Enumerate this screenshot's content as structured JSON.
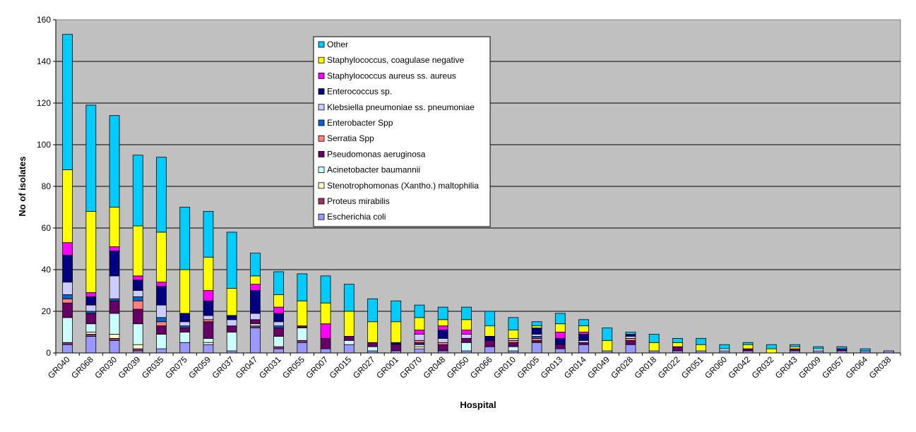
{
  "chart_data": {
    "type": "bar",
    "stacked": true,
    "xlabel": "Hospital",
    "ylabel": "No of isolates",
    "ylim": [
      0,
      160
    ],
    "ytick_step": 20,
    "grid": true,
    "legend_position": "top-center",
    "plot_background": "#c0c0c0",
    "categories": [
      "GR040",
      "GR068",
      "GR030",
      "GR039",
      "GR035",
      "GR075",
      "GR059",
      "GR037",
      "GR047",
      "GR031",
      "GR055",
      "GR007",
      "GR015",
      "GR027",
      "GR001",
      "GR070",
      "GR048",
      "GR050",
      "GR066",
      "GR010",
      "GR005",
      "GR013",
      "GR014",
      "GR049",
      "GR028",
      "GR018",
      "GR022",
      "GR051",
      "GR060",
      "GR042",
      "GR032",
      "GR043",
      "GR009",
      "GR057",
      "GR064",
      "GR038"
    ],
    "series": [
      {
        "name": "Escherichia coli",
        "color": "#9999ff",
        "values": [
          4,
          8,
          6,
          1,
          2,
          5,
          4,
          1,
          12,
          2,
          5,
          2,
          4,
          1,
          1,
          2,
          1,
          1,
          3,
          1,
          5,
          2,
          4,
          1,
          4,
          1,
          1,
          1,
          1,
          1,
          0,
          1,
          1,
          1,
          1,
          1
        ]
      },
      {
        "name": "Proteus mirabilis",
        "color": "#993366",
        "values": [
          1,
          1,
          1,
          1,
          0,
          0,
          0,
          0,
          1,
          1,
          1,
          0,
          0,
          0,
          0,
          0,
          0,
          0,
          0,
          0,
          0,
          0,
          0,
          0,
          0,
          0,
          0,
          0,
          0,
          0,
          0,
          0,
          0,
          0,
          0,
          0
        ]
      },
      {
        "name": "Stenotrophomonas (Xantho.) maltophilia",
        "color": "#ffffcc",
        "values": [
          0,
          1,
          2,
          2,
          0,
          0,
          1,
          0,
          0,
          0,
          0,
          0,
          0,
          0,
          0,
          1,
          0,
          0,
          0,
          0,
          0,
          0,
          0,
          0,
          0,
          0,
          0,
          0,
          0,
          0,
          0,
          0,
          0,
          0,
          0,
          0
        ]
      },
      {
        "name": "Acinetobacter baumannii",
        "color": "#ccffff",
        "values": [
          12,
          4,
          10,
          10,
          7,
          5,
          2,
          9,
          1,
          5,
          6,
          0,
          2,
          2,
          0,
          1,
          0,
          4,
          0,
          2,
          0,
          0,
          0,
          0,
          0,
          0,
          0,
          0,
          1,
          0,
          0,
          0,
          1,
          0,
          0,
          0
        ]
      },
      {
        "name": "Pseudomonas aeruginosa",
        "color": "#660066",
        "values": [
          7,
          5,
          6,
          7,
          4,
          2,
          8,
          3,
          2,
          4,
          1,
          5,
          2,
          2,
          3,
          1,
          3,
          2,
          3,
          2,
          1,
          2,
          1,
          0,
          2,
          0,
          2,
          0,
          0,
          1,
          0,
          1,
          0,
          1,
          0,
          0
        ]
      },
      {
        "name": "Serratia Spp",
        "color": "#ff8080",
        "values": [
          2,
          0,
          0,
          4,
          2,
          0,
          1,
          0,
          0,
          0,
          0,
          0,
          0,
          0,
          0,
          1,
          1,
          0,
          0,
          1,
          1,
          0,
          0,
          0,
          1,
          0,
          0,
          0,
          0,
          0,
          0,
          0,
          0,
          0,
          0,
          0
        ]
      },
      {
        "name": "Enterobacter Spp",
        "color": "#0066cc",
        "values": [
          2,
          1,
          1,
          2,
          2,
          1,
          0,
          0,
          0,
          1,
          0,
          0,
          0,
          0,
          0,
          0,
          0,
          0,
          0,
          0,
          1,
          0,
          0,
          0,
          0,
          0,
          0,
          0,
          0,
          0,
          0,
          0,
          0,
          0,
          0,
          0
        ]
      },
      {
        "name": "Klebsiella pneumoniae ss. pneumoniae",
        "color": "#ccccff",
        "values": [
          6,
          3,
          11,
          3,
          6,
          2,
          2,
          3,
          3,
          2,
          0,
          0,
          0,
          0,
          0,
          3,
          2,
          2,
          0,
          1,
          1,
          0,
          1,
          0,
          1,
          0,
          0,
          0,
          0,
          0,
          0,
          0,
          0,
          0,
          0,
          0
        ]
      },
      {
        "name": "Enterococcus sp.",
        "color": "#000080",
        "values": [
          13,
          4,
          12,
          5,
          9,
          4,
          7,
          2,
          11,
          4,
          0,
          0,
          0,
          0,
          1,
          0,
          4,
          0,
          2,
          0,
          3,
          3,
          3,
          0,
          1,
          0,
          0,
          0,
          0,
          0,
          0,
          0,
          0,
          0,
          0,
          0
        ]
      },
      {
        "name": "Staphylococcus aureus ss. aureus",
        "color": "#ff00ff",
        "values": [
          6,
          2,
          2,
          2,
          2,
          0,
          5,
          0,
          3,
          3,
          0,
          7,
          0,
          0,
          0,
          2,
          2,
          2,
          0,
          0,
          0,
          3,
          1,
          0,
          0,
          0,
          0,
          0,
          0,
          0,
          0,
          0,
          0,
          0,
          0,
          0
        ]
      },
      {
        "name": "Staphylococcus, coagulase negative",
        "color": "#ffff00",
        "values": [
          35,
          39,
          19,
          24,
          24,
          21,
          16,
          13,
          4,
          6,
          12,
          10,
          12,
          10,
          10,
          6,
          3,
          5,
          5,
          4,
          1,
          4,
          3,
          5,
          0,
          4,
          2,
          3,
          0,
          2,
          2,
          1,
          0,
          0,
          0,
          0
        ]
      },
      {
        "name": "Other",
        "color": "#00ccff",
        "values": [
          65,
          51,
          44,
          34,
          36,
          30,
          22,
          27,
          11,
          11,
          13,
          13,
          13,
          11,
          10,
          6,
          6,
          6,
          7,
          6,
          2,
          5,
          3,
          6,
          1,
          4,
          2,
          3,
          2,
          1,
          2,
          1,
          1,
          1,
          1,
          0
        ]
      }
    ]
  }
}
